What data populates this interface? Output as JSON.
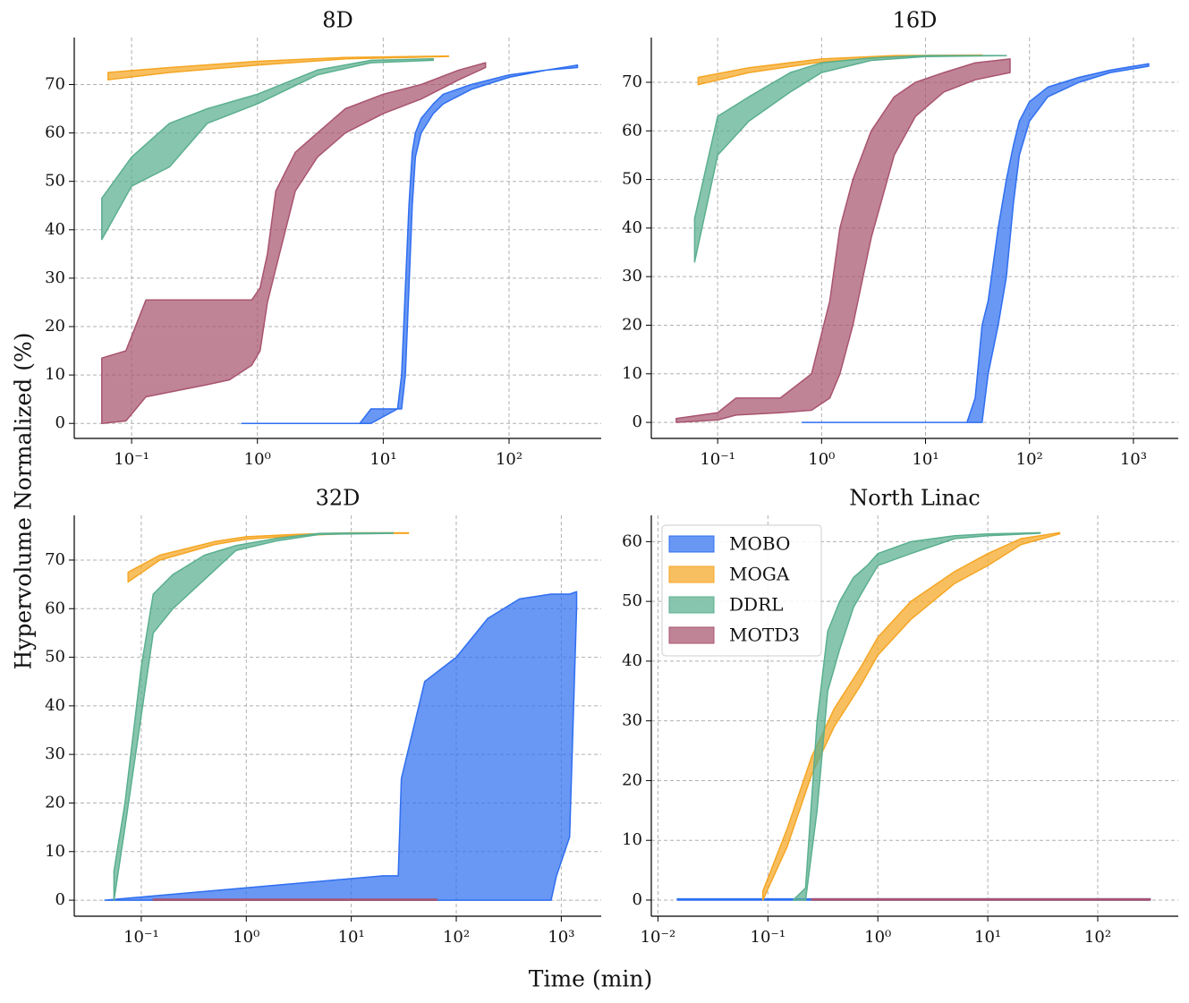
{
  "figure": {
    "xlabel": "Time (min)",
    "ylabel": "Hypervolume Normalized (%)"
  },
  "chart_data": [
    {
      "type": "band",
      "title": "8D",
      "xscale": "log",
      "grid": true,
      "xlim": [
        0.035,
        540
      ],
      "ylim": [
        -3.1,
        79.7
      ],
      "xticks": [
        {
          "value": 0.1,
          "label": "10⁻¹"
        },
        {
          "value": 1,
          "label": "10⁰"
        },
        {
          "value": 10,
          "label": "10¹"
        },
        {
          "value": 100,
          "label": "10²"
        }
      ],
      "yticks": [
        0,
        10,
        20,
        30,
        40,
        50,
        60,
        70
      ],
      "series": [
        {
          "name": "MOBO",
          "color": "#2f6ff0",
          "x": [
            0.75,
            6.5,
            8,
            13,
            14,
            15,
            16,
            17,
            18,
            20,
            25,
            30,
            50,
            100,
            200,
            350
          ],
          "upper": [
            0,
            0,
            3,
            3,
            10,
            28,
            45,
            56,
            60,
            63,
            66,
            68,
            70,
            72,
            73,
            74
          ],
          "lower": [
            0,
            0,
            0,
            3,
            3,
            10,
            28,
            45,
            55,
            60,
            64,
            66,
            69,
            71.5,
            73,
            73.5
          ]
        },
        {
          "name": "MOGA",
          "color": "#f5a623",
          "x": [
            0.065,
            0.2,
            1,
            5,
            33
          ],
          "upper": [
            72.5,
            73.5,
            74.8,
            75.6,
            75.9
          ],
          "lower": [
            71,
            72.5,
            74,
            75.3,
            75.8
          ]
        },
        {
          "name": "DDRL",
          "color": "#5aaf8f",
          "x": [
            0.058,
            0.1,
            0.2,
            0.4,
            1,
            3,
            8,
            25
          ],
          "upper": [
            46.5,
            55,
            62,
            65,
            68,
            73,
            75,
            75.3
          ],
          "lower": [
            38,
            49,
            53,
            62,
            66,
            72,
            74.5,
            75
          ]
        },
        {
          "name": "MOTD3",
          "color": "#a8546f",
          "x": [
            0.058,
            0.09,
            0.13,
            0.4,
            0.6,
            0.9,
            1.05,
            1.2,
            1.4,
            2,
            3,
            5,
            10,
            20,
            40,
            65
          ],
          "upper": [
            13.5,
            15,
            25.5,
            25.5,
            25.5,
            25.5,
            28,
            35,
            48,
            56,
            60,
            65,
            68,
            70,
            73,
            74.5
          ],
          "lower": [
            0,
            0.5,
            5.5,
            8,
            9,
            12,
            15,
            25,
            32,
            48,
            55,
            60,
            64,
            67,
            71,
            73.5
          ]
        }
      ]
    },
    {
      "type": "band",
      "title": "16D",
      "xscale": "log",
      "grid": true,
      "xlim": [
        0.023,
        2700
      ],
      "ylim": [
        -3.3,
        79.2
      ],
      "xticks": [
        {
          "value": 0.1,
          "label": "10⁻¹"
        },
        {
          "value": 1,
          "label": "10⁰"
        },
        {
          "value": 10,
          "label": "10¹"
        },
        {
          "value": 100,
          "label": "10²"
        },
        {
          "value": 1000,
          "label": "10³"
        }
      ],
      "yticks": [
        0,
        10,
        20,
        30,
        40,
        50,
        60,
        70
      ],
      "series": [
        {
          "name": "MOBO",
          "color": "#2f6ff0",
          "x": [
            0.65,
            25,
            30,
            35,
            40,
            50,
            60,
            70,
            80,
            100,
            150,
            300,
            600,
            1400
          ],
          "upper": [
            0,
            0,
            5,
            20,
            25,
            40,
            50,
            57,
            62,
            66,
            69,
            71,
            72.5,
            73.8
          ],
          "lower": [
            0,
            0,
            0,
            0,
            10,
            20,
            30,
            45,
            55,
            62,
            67,
            70,
            72,
            73.3
          ]
        },
        {
          "name": "MOGA",
          "color": "#f5a623",
          "x": [
            0.065,
            0.2,
            1,
            5,
            35
          ],
          "upper": [
            71,
            73,
            74.8,
            75.5,
            75.6
          ],
          "lower": [
            69.5,
            72,
            74.2,
            75.3,
            75.5
          ]
        },
        {
          "name": "DDRL",
          "color": "#5aaf8f",
          "x": [
            0.06,
            0.1,
            0.2,
            0.5,
            1,
            3,
            10,
            60
          ],
          "upper": [
            42,
            63,
            67,
            72,
            74,
            75,
            75.5,
            75.5
          ],
          "lower": [
            33,
            55,
            62,
            68,
            72,
            74.5,
            75.3,
            75.5
          ]
        },
        {
          "name": "MOTD3",
          "color": "#a8546f",
          "x": [
            0.04,
            0.1,
            0.15,
            0.4,
            0.8,
            1.2,
            1.5,
            2,
            3,
            5,
            8,
            15,
            30,
            65
          ],
          "upper": [
            0.8,
            2,
            5,
            5,
            10,
            25,
            40,
            50,
            60,
            67,
            70,
            72,
            74,
            74.8
          ],
          "lower": [
            0,
            0.5,
            1.5,
            2,
            2.5,
            5,
            10,
            20,
            38,
            55,
            63,
            68,
            70.5,
            72
          ]
        }
      ]
    },
    {
      "type": "band",
      "title": "32D",
      "xscale": "log",
      "grid": true,
      "xlim": [
        0.023,
        2400
      ],
      "ylim": [
        -3.3,
        79.2
      ],
      "xticks": [
        {
          "value": 0.1,
          "label": "10⁻¹"
        },
        {
          "value": 1,
          "label": "10⁰"
        },
        {
          "value": 10,
          "label": "10¹"
        },
        {
          "value": 100,
          "label": "10²"
        },
        {
          "value": 1000,
          "label": "10³"
        }
      ],
      "yticks": [
        0,
        10,
        20,
        30,
        40,
        50,
        60,
        70
      ],
      "series": [
        {
          "name": "MOBO",
          "color": "#2f6ff0",
          "x": [
            0.045,
            20,
            28,
            30,
            50,
            100,
            200,
            400,
            800,
            900,
            1200,
            1400
          ],
          "upper": [
            0,
            5,
            5,
            25,
            45,
            50,
            58,
            62,
            63,
            63,
            63,
            63.5
          ],
          "lower": [
            0,
            0,
            0,
            0,
            0,
            0,
            0,
            0,
            0,
            5,
            13,
            60
          ]
        },
        {
          "name": "MOGA",
          "color": "#f5a623",
          "x": [
            0.075,
            0.15,
            0.5,
            1,
            3,
            10,
            35
          ],
          "upper": [
            67.5,
            71,
            73.8,
            74.8,
            75.3,
            75.6,
            75.6
          ],
          "lower": [
            65.5,
            70,
            73.2,
            74.3,
            75,
            75.5,
            75.5
          ]
        },
        {
          "name": "DDRL",
          "color": "#5aaf8f",
          "x": [
            0.055,
            0.07,
            0.1,
            0.13,
            0.2,
            0.4,
            0.8,
            2,
            5,
            25
          ],
          "upper": [
            6,
            20,
            48,
            63,
            67,
            71,
            73,
            74.5,
            75.5,
            75.6
          ],
          "lower": [
            0,
            15,
            38,
            55,
            60,
            66,
            72,
            74,
            75.3,
            75.5
          ]
        },
        {
          "name": "MOTD3",
          "color": "#a8546f",
          "x": [
            0.13,
            65
          ],
          "upper": [
            0.2,
            0.2
          ],
          "lower": [
            0,
            0
          ]
        }
      ]
    },
    {
      "type": "band",
      "title": "North Linac",
      "xscale": "log",
      "grid": true,
      "legend": "upper left",
      "xlim": [
        0.0087,
        540
      ],
      "ylim": [
        -2.7,
        64.4
      ],
      "xticks": [
        {
          "value": 0.01,
          "label": "10⁻²"
        },
        {
          "value": 0.1,
          "label": "10⁻¹"
        },
        {
          "value": 1,
          "label": "10⁰"
        },
        {
          "value": 10,
          "label": "10¹"
        },
        {
          "value": 100,
          "label": "10²"
        }
      ],
      "yticks": [
        0,
        10,
        20,
        30,
        40,
        50,
        60
      ],
      "series": [
        {
          "name": "MOBO",
          "color": "#2f6ff0",
          "x": [
            0.015,
            300
          ],
          "upper": [
            0.2,
            0.2
          ],
          "lower": [
            0,
            0
          ]
        },
        {
          "name": "MOGA",
          "color": "#f5a623",
          "x": [
            0.09,
            0.15,
            0.25,
            0.4,
            0.7,
            1,
            2,
            5,
            10,
            20,
            45
          ],
          "upper": [
            1.5,
            12,
            24,
            32,
            39,
            44,
            50,
            55,
            58,
            60.5,
            61.5
          ],
          "lower": [
            0,
            9,
            21,
            29,
            36,
            41,
            47,
            53,
            56,
            59.5,
            61.3
          ]
        },
        {
          "name": "DDRL",
          "color": "#5aaf8f",
          "x": [
            0.17,
            0.22,
            0.28,
            0.35,
            0.45,
            0.6,
            0.8,
            1,
            2,
            5,
            10,
            30
          ],
          "upper": [
            0,
            2,
            30,
            45,
            50,
            54,
            56,
            58,
            60,
            61,
            61.3,
            61.5
          ],
          "lower": [
            0,
            0,
            15,
            35,
            42,
            49,
            53,
            56,
            58,
            60.5,
            61,
            61.4
          ]
        },
        {
          "name": "MOTD3",
          "color": "#a8546f",
          "x": [
            0.25,
            300
          ],
          "upper": [
            0.2,
            0.2
          ],
          "lower": [
            0,
            0
          ]
        }
      ]
    }
  ]
}
